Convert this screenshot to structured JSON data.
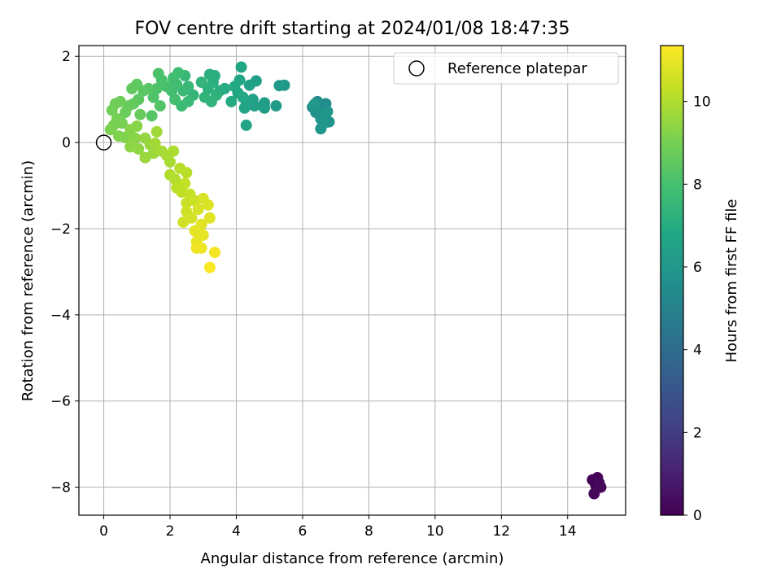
{
  "chart_data": {
    "type": "scatter",
    "title": "FOV centre drift starting at 2024/01/08 18:47:35",
    "xlabel": "Angular distance from reference (arcmin)",
    "ylabel": "Rotation from reference (arcmin)",
    "xlim": [
      -0.75,
      15.75
    ],
    "ylim": [
      -8.65,
      2.25
    ],
    "xticks": [
      0,
      2,
      4,
      6,
      8,
      10,
      12,
      14
    ],
    "yticks": [
      -8,
      -6,
      -4,
      -2,
      0,
      2
    ],
    "xtick_labels": [
      "0",
      "2",
      "4",
      "6",
      "8",
      "10",
      "12",
      "14"
    ],
    "ytick_labels": [
      "−8",
      "−6",
      "−4",
      "−2",
      "0",
      "2"
    ],
    "grid": true,
    "colormap": "viridis",
    "colorbar": {
      "label": "Hours from first FF file",
      "range": [
        0,
        11.35
      ],
      "ticks": [
        0,
        2,
        4,
        6,
        8,
        10
      ],
      "tick_labels": [
        "0",
        "2",
        "4",
        "6",
        "8",
        "10"
      ]
    },
    "legend": {
      "position": "top-right",
      "entries": [
        {
          "label": "Reference platepar",
          "marker": "open-circle"
        }
      ]
    },
    "reference_point": {
      "x": 0,
      "y": 0
    },
    "points": [
      {
        "x": 14.75,
        "y": -7.83,
        "h": 0.0
      },
      {
        "x": 14.9,
        "y": -7.78,
        "h": 0.05
      },
      {
        "x": 14.85,
        "y": -7.95,
        "h": 0.1
      },
      {
        "x": 15.0,
        "y": -8.0,
        "h": 0.15
      },
      {
        "x": 14.8,
        "y": -8.15,
        "h": 0.2
      },
      {
        "x": 14.95,
        "y": -7.9,
        "h": 0.25
      },
      {
        "x": 6.3,
        "y": 0.82,
        "h": 5.45
      },
      {
        "x": 6.45,
        "y": 0.95,
        "h": 5.5
      },
      {
        "x": 6.7,
        "y": 0.9,
        "h": 5.55
      },
      {
        "x": 6.5,
        "y": 0.75,
        "h": 5.6
      },
      {
        "x": 6.6,
        "y": 0.65,
        "h": 5.65
      },
      {
        "x": 6.4,
        "y": 0.7,
        "h": 5.7
      },
      {
        "x": 6.55,
        "y": 0.55,
        "h": 5.75
      },
      {
        "x": 6.8,
        "y": 0.48,
        "h": 5.8
      },
      {
        "x": 6.65,
        "y": 0.45,
        "h": 5.85
      },
      {
        "x": 6.55,
        "y": 0.32,
        "h": 5.9
      },
      {
        "x": 6.75,
        "y": 0.72,
        "h": 5.95
      },
      {
        "x": 6.35,
        "y": 0.88,
        "h": 6.0
      },
      {
        "x": 5.45,
        "y": 1.33,
        "h": 6.05
      },
      {
        "x": 5.3,
        "y": 1.32,
        "h": 6.1
      },
      {
        "x": 5.2,
        "y": 0.85,
        "h": 6.15
      },
      {
        "x": 4.85,
        "y": 0.92,
        "h": 6.2
      },
      {
        "x": 4.85,
        "y": 0.8,
        "h": 6.25
      },
      {
        "x": 4.6,
        "y": 1.43,
        "h": 6.3
      },
      {
        "x": 4.5,
        "y": 1.0,
        "h": 6.35
      },
      {
        "x": 4.55,
        "y": 0.85,
        "h": 6.4
      },
      {
        "x": 4.4,
        "y": 1.33,
        "h": 6.45
      },
      {
        "x": 4.3,
        "y": 0.95,
        "h": 6.5
      },
      {
        "x": 4.25,
        "y": 0.8,
        "h": 6.55
      },
      {
        "x": 4.3,
        "y": 0.4,
        "h": 6.6
      },
      {
        "x": 4.15,
        "y": 1.75,
        "h": 6.65
      },
      {
        "x": 4.1,
        "y": 1.45,
        "h": 6.7
      },
      {
        "x": 4.05,
        "y": 1.15,
        "h": 6.75
      },
      {
        "x": 4.2,
        "y": 1.05,
        "h": 6.8
      },
      {
        "x": 3.95,
        "y": 1.3,
        "h": 6.85
      },
      {
        "x": 3.85,
        "y": 0.95,
        "h": 6.9
      },
      {
        "x": 3.65,
        "y": 1.25,
        "h": 6.95
      },
      {
        "x": 3.5,
        "y": 1.2,
        "h": 7.0
      },
      {
        "x": 3.35,
        "y": 1.55,
        "h": 7.05
      },
      {
        "x": 3.2,
        "y": 1.58,
        "h": 7.1
      },
      {
        "x": 3.3,
        "y": 1.4,
        "h": 7.15
      },
      {
        "x": 3.15,
        "y": 1.25,
        "h": 7.2
      },
      {
        "x": 3.4,
        "y": 1.1,
        "h": 7.25
      },
      {
        "x": 3.25,
        "y": 0.95,
        "h": 7.3
      },
      {
        "x": 3.05,
        "y": 1.05,
        "h": 7.35
      },
      {
        "x": 2.95,
        "y": 1.4,
        "h": 7.4
      },
      {
        "x": 2.7,
        "y": 1.1,
        "h": 7.45
      },
      {
        "x": 2.55,
        "y": 1.3,
        "h": 7.5
      },
      {
        "x": 2.45,
        "y": 1.55,
        "h": 7.55
      },
      {
        "x": 2.4,
        "y": 1.2,
        "h": 7.6
      },
      {
        "x": 2.55,
        "y": 0.95,
        "h": 7.65
      },
      {
        "x": 2.35,
        "y": 0.85,
        "h": 7.7
      },
      {
        "x": 2.25,
        "y": 1.62,
        "h": 7.75
      },
      {
        "x": 2.2,
        "y": 1.35,
        "h": 7.8
      },
      {
        "x": 2.1,
        "y": 1.5,
        "h": 7.85
      },
      {
        "x": 2.05,
        "y": 1.2,
        "h": 7.9
      },
      {
        "x": 2.15,
        "y": 1.0,
        "h": 7.95
      },
      {
        "x": 1.9,
        "y": 1.3,
        "h": 8.0
      },
      {
        "x": 1.75,
        "y": 1.45,
        "h": 8.05
      },
      {
        "x": 1.65,
        "y": 1.6,
        "h": 8.1
      },
      {
        "x": 1.6,
        "y": 1.25,
        "h": 8.15
      },
      {
        "x": 1.5,
        "y": 1.05,
        "h": 8.2
      },
      {
        "x": 1.7,
        "y": 0.85,
        "h": 8.25
      },
      {
        "x": 1.45,
        "y": 0.62,
        "h": 8.3
      },
      {
        "x": 1.35,
        "y": 1.25,
        "h": 8.35
      },
      {
        "x": 1.2,
        "y": 1.2,
        "h": 8.4
      },
      {
        "x": 1.05,
        "y": 1.0,
        "h": 8.45
      },
      {
        "x": 1.0,
        "y": 1.35,
        "h": 8.5
      },
      {
        "x": 0.85,
        "y": 1.25,
        "h": 8.55
      },
      {
        "x": 0.9,
        "y": 0.9,
        "h": 8.6
      },
      {
        "x": 0.75,
        "y": 0.85,
        "h": 8.65
      },
      {
        "x": 1.1,
        "y": 0.65,
        "h": 8.7
      },
      {
        "x": 0.65,
        "y": 0.7,
        "h": 8.75
      },
      {
        "x": 0.5,
        "y": 0.95,
        "h": 8.8
      },
      {
        "x": 0.35,
        "y": 0.9,
        "h": 8.85
      },
      {
        "x": 0.25,
        "y": 0.75,
        "h": 8.9
      },
      {
        "x": 0.4,
        "y": 0.55,
        "h": 8.95
      },
      {
        "x": 0.55,
        "y": 0.45,
        "h": 9.0
      },
      {
        "x": 0.3,
        "y": 0.4,
        "h": 9.05
      },
      {
        "x": 0.2,
        "y": 0.3,
        "h": 9.1
      },
      {
        "x": 0.45,
        "y": 0.15,
        "h": 9.15
      },
      {
        "x": 0.65,
        "y": 0.12,
        "h": 9.2
      },
      {
        "x": 0.8,
        "y": 0.3,
        "h": 9.25
      },
      {
        "x": 1.0,
        "y": 0.38,
        "h": 9.3
      },
      {
        "x": 0.95,
        "y": 0.1,
        "h": 9.35
      },
      {
        "x": 0.8,
        "y": -0.1,
        "h": 9.4
      },
      {
        "x": 1.05,
        "y": -0.15,
        "h": 9.45
      },
      {
        "x": 1.25,
        "y": 0.1,
        "h": 9.5
      },
      {
        "x": 1.4,
        "y": -0.05,
        "h": 9.55
      },
      {
        "x": 1.25,
        "y": -0.35,
        "h": 9.6
      },
      {
        "x": 1.5,
        "y": -0.25,
        "h": 9.65
      },
      {
        "x": 1.6,
        "y": 0.25,
        "h": 9.7
      },
      {
        "x": 1.55,
        "y": -0.02,
        "h": 9.75
      },
      {
        "x": 1.75,
        "y": -0.2,
        "h": 9.8
      },
      {
        "x": 1.9,
        "y": -0.3,
        "h": 9.85
      },
      {
        "x": 2.0,
        "y": -0.45,
        "h": 9.9
      },
      {
        "x": 2.1,
        "y": -0.2,
        "h": 9.95
      },
      {
        "x": 2.0,
        "y": -0.75,
        "h": 10.0
      },
      {
        "x": 2.15,
        "y": -0.85,
        "h": 10.05
      },
      {
        "x": 2.3,
        "y": -0.6,
        "h": 10.1
      },
      {
        "x": 2.5,
        "y": -0.7,
        "h": 10.15
      },
      {
        "x": 2.2,
        "y": -1.05,
        "h": 10.2
      },
      {
        "x": 2.35,
        "y": -1.15,
        "h": 10.25
      },
      {
        "x": 2.45,
        "y": -0.95,
        "h": 10.3
      },
      {
        "x": 2.6,
        "y": -1.2,
        "h": 10.35
      },
      {
        "x": 2.5,
        "y": -1.4,
        "h": 10.4
      },
      {
        "x": 2.75,
        "y": -1.35,
        "h": 10.45
      },
      {
        "x": 2.5,
        "y": -1.6,
        "h": 10.5
      },
      {
        "x": 2.4,
        "y": -1.85,
        "h": 10.55
      },
      {
        "x": 2.65,
        "y": -1.75,
        "h": 10.6
      },
      {
        "x": 2.85,
        "y": -1.55,
        "h": 10.65
      },
      {
        "x": 3.0,
        "y": -1.3,
        "h": 10.7
      },
      {
        "x": 3.15,
        "y": -1.45,
        "h": 10.75
      },
      {
        "x": 3.2,
        "y": -1.75,
        "h": 10.8
      },
      {
        "x": 2.95,
        "y": -1.9,
        "h": 10.85
      },
      {
        "x": 2.75,
        "y": -2.05,
        "h": 10.9
      },
      {
        "x": 3.0,
        "y": -2.15,
        "h": 10.95
      },
      {
        "x": 2.8,
        "y": -2.3,
        "h": 11.0
      },
      {
        "x": 2.95,
        "y": -2.45,
        "h": 11.05
      },
      {
        "x": 2.8,
        "y": -2.45,
        "h": 11.1
      },
      {
        "x": 3.35,
        "y": -2.55,
        "h": 11.2
      },
      {
        "x": 3.2,
        "y": -2.9,
        "h": 11.3
      }
    ]
  }
}
